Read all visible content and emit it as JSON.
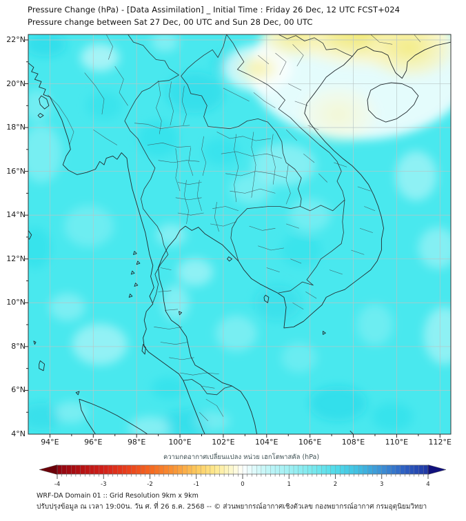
{
  "header": {
    "title": "Pressure Change (hPa) - [Data Assimilation] _ Initial Time : Friday 26 Dec, 12 UTC FCST+024",
    "subtitle": "Pressure change between Sat 27 Dec, 00 UTC and Sun 28 Dec, 00 UTC"
  },
  "map": {
    "x_axis": {
      "tick_values": [
        94,
        96,
        98,
        100,
        102,
        104,
        106,
        108,
        110,
        112
      ],
      "tick_labels": [
        "94°E",
        "96°E",
        "98°E",
        "100°E",
        "102°E",
        "104°E",
        "106°E",
        "108°E",
        "110°E",
        "112°E"
      ]
    },
    "y_axis": {
      "tick_values": [
        22,
        20,
        18,
        16,
        14,
        12,
        10,
        8,
        6,
        4
      ],
      "tick_labels": [
        "22°N",
        "20°N",
        "18°N",
        "16°N",
        "14°N",
        "12°N",
        "10°N",
        "8°N",
        "6°N",
        "4°N"
      ]
    },
    "lon_range": [
      93,
      112.5
    ],
    "lat_range": [
      4,
      22.25
    ],
    "grid_interval_deg": 2
  },
  "colorbar": {
    "label": "ความกดอากาศเปลี่ยนแปลง หน่วย เฮกโตพาสคัล (hPa)",
    "unit": "hPa",
    "ticks": [
      -4,
      -3,
      -2,
      -1,
      0,
      1,
      2,
      3,
      4
    ],
    "range": [
      -4,
      4
    ],
    "segment_step": 0.1,
    "anchors": [
      [
        -4.3,
        "#6b0009"
      ],
      [
        -4,
        "#8c0410"
      ],
      [
        -3.5,
        "#b31012"
      ],
      [
        -3,
        "#d32019"
      ],
      [
        -2.5,
        "#ea3e1b"
      ],
      [
        -2,
        "#f5661f"
      ],
      [
        -1.5,
        "#fa9334"
      ],
      [
        -1,
        "#fdc95c"
      ],
      [
        -0.6,
        "#fee98e"
      ],
      [
        -0.3,
        "#fdf6c4"
      ],
      [
        -0.1,
        "#fefce8"
      ],
      [
        0,
        "#ffffff"
      ],
      [
        0.1,
        "#f0fdfd"
      ],
      [
        0.3,
        "#d8f9fa"
      ],
      [
        0.6,
        "#bdf5f7"
      ],
      [
        1,
        "#a0f0f4"
      ],
      [
        1.5,
        "#79e9ef"
      ],
      [
        2,
        "#50dcea"
      ],
      [
        2.5,
        "#3fbfe3"
      ],
      [
        3,
        "#3c90d6"
      ],
      [
        3.5,
        "#2e5ec2"
      ],
      [
        4,
        "#1e36a4"
      ],
      [
        4.3,
        "#10107c"
      ]
    ]
  },
  "footer": {
    "line1": "WRF-DA Domain 01 :: Grid Resolution 9km x 9km",
    "line2": "ปรับปรุงข้อมูล ณ เวลา 19:00น. วัน ศ. ที่ 26 ธ.ค. 2568 -- © ส่วนพยากรณ์อากาศเชิงตัวเลข กองพยากรณ์อากาศ กรมอุตุนิยมวิทยา"
  },
  "chart_data": {
    "type": "heatmap",
    "title": "Pressure change (hPa) between Sat 27 Dec 00 UTC and Sun 28 Dec 00 UTC",
    "units": "hPa",
    "x_range_deg_east": [
      93,
      112.5
    ],
    "y_range_deg_north": [
      4,
      22.25
    ],
    "colorbar_ticks": [
      -4,
      -3,
      -2,
      -1,
      0,
      1,
      2,
      3,
      4
    ],
    "legend_position": "bottom",
    "grid": true,
    "field_summary": [
      {
        "region": "Northern Vietnam / southern China coast (top-right of domain)",
        "value_hPa": -1.0
      },
      {
        "region": "Secondary negative lobe near NW Vietnam (~103.5E, 20.7N)",
        "value_hPa": -0.6
      },
      {
        "region": "Transition band (white, ~0) along central Vietnam coast and Hainan",
        "value_hPa": 0.0
      },
      {
        "region": "Most of Thailand, Myanmar, Andaman Sea, Gulf of Thailand (cyan)",
        "value_hPa": 0.8
      },
      {
        "region": "Lighter cyan patches (NE Thailand plateau, eastern sea areas)",
        "value_hPa": 0.5
      },
      {
        "region": "Deeper cyan patches (northern Thailand, far south of domain)",
        "value_hPa": 1.2
      }
    ]
  }
}
